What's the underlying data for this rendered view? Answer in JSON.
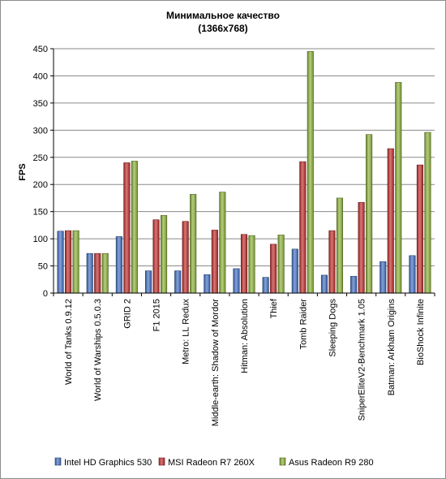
{
  "chart_data": {
    "type": "bar",
    "title": "Минимальное  качество",
    "subtitle": "(1366x768)",
    "ylabel": "FPS",
    "xlabel": "",
    "ylim": [
      0,
      450
    ],
    "yticks": [
      0,
      50,
      100,
      150,
      200,
      250,
      300,
      350,
      400,
      450
    ],
    "grid": true,
    "legend_position": "bottom",
    "categories": [
      "World of Tanks 0.9.12",
      "World of Warships 0.5.0.3",
      "GRID 2",
      "F1 2015",
      "Metro: LL Redux",
      "Middle-earth: Shadow of Mordor",
      "Hitman: Absolution",
      "Thief",
      "Tomb Raider",
      "Sleeping Dogs",
      "SniperEliteV2-Benchmark 1.05",
      "Batman: Arkham Origins",
      "BioShock Infinite"
    ],
    "series": [
      {
        "name": "Intel HD Graphics 530",
        "color": "#4472C4",
        "values": [
          114,
          73,
          104,
          41,
          41,
          34,
          45,
          29,
          81,
          33,
          31,
          58,
          69
        ]
      },
      {
        "name": "MSI Radeon R7 260X",
        "color": "#C0302D",
        "values": [
          115,
          73,
          240,
          135,
          132,
          116,
          108,
          90,
          242,
          115,
          167,
          266,
          236
        ]
      },
      {
        "name": "Asus Radeon R9 280",
        "color": "#8DB33A",
        "values": [
          115,
          73,
          243,
          143,
          182,
          186,
          106,
          107,
          445,
          175,
          292,
          388,
          296
        ]
      }
    ]
  }
}
